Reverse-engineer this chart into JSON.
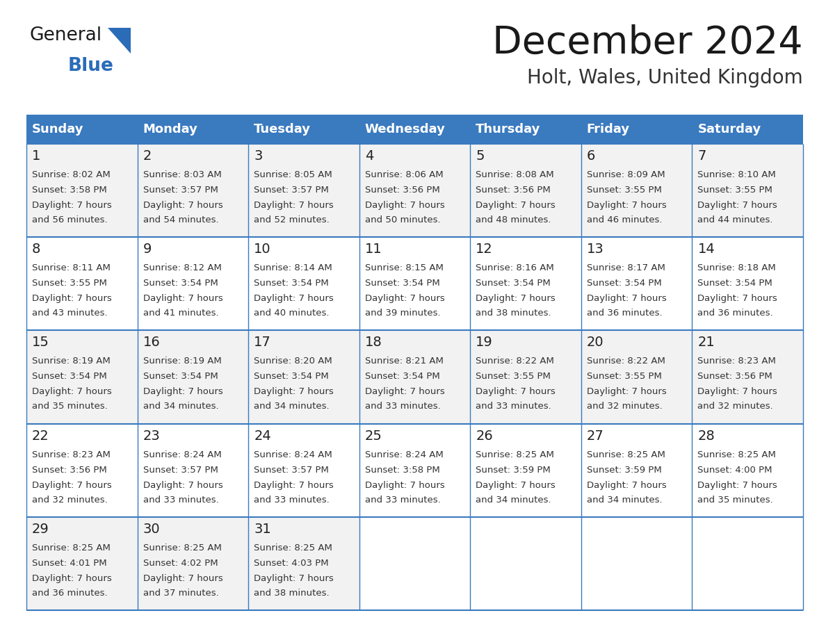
{
  "title": "December 2024",
  "subtitle": "Holt, Wales, United Kingdom",
  "days_of_week": [
    "Sunday",
    "Monday",
    "Tuesday",
    "Wednesday",
    "Thursday",
    "Friday",
    "Saturday"
  ],
  "header_bg": "#3a7abf",
  "header_text": "#ffffff",
  "row_bg_odd": "#f2f2f2",
  "row_bg_even": "#ffffff",
  "cell_text_color": "#333333",
  "day_num_color": "#222222",
  "grid_line_color": "#3a7abf",
  "title_color": "#1a1a1a",
  "subtitle_color": "#333333",
  "generalblue_text_color": "#1a1a1a",
  "blue_text_color": "#2b6cb8",
  "logo_general_color": "#1a1a1a",
  "weeks": [
    [
      {
        "day": 1,
        "sunrise": "8:02 AM",
        "sunset": "3:58 PM",
        "daylight": "7 hours and 56 minutes."
      },
      {
        "day": 2,
        "sunrise": "8:03 AM",
        "sunset": "3:57 PM",
        "daylight": "7 hours and 54 minutes."
      },
      {
        "day": 3,
        "sunrise": "8:05 AM",
        "sunset": "3:57 PM",
        "daylight": "7 hours and 52 minutes."
      },
      {
        "day": 4,
        "sunrise": "8:06 AM",
        "sunset": "3:56 PM",
        "daylight": "7 hours and 50 minutes."
      },
      {
        "day": 5,
        "sunrise": "8:08 AM",
        "sunset": "3:56 PM",
        "daylight": "7 hours and 48 minutes."
      },
      {
        "day": 6,
        "sunrise": "8:09 AM",
        "sunset": "3:55 PM",
        "daylight": "7 hours and 46 minutes."
      },
      {
        "day": 7,
        "sunrise": "8:10 AM",
        "sunset": "3:55 PM",
        "daylight": "7 hours and 44 minutes."
      }
    ],
    [
      {
        "day": 8,
        "sunrise": "8:11 AM",
        "sunset": "3:55 PM",
        "daylight": "7 hours and 43 minutes."
      },
      {
        "day": 9,
        "sunrise": "8:12 AM",
        "sunset": "3:54 PM",
        "daylight": "7 hours and 41 minutes."
      },
      {
        "day": 10,
        "sunrise": "8:14 AM",
        "sunset": "3:54 PM",
        "daylight": "7 hours and 40 minutes."
      },
      {
        "day": 11,
        "sunrise": "8:15 AM",
        "sunset": "3:54 PM",
        "daylight": "7 hours and 39 minutes."
      },
      {
        "day": 12,
        "sunrise": "8:16 AM",
        "sunset": "3:54 PM",
        "daylight": "7 hours and 38 minutes."
      },
      {
        "day": 13,
        "sunrise": "8:17 AM",
        "sunset": "3:54 PM",
        "daylight": "7 hours and 36 minutes."
      },
      {
        "day": 14,
        "sunrise": "8:18 AM",
        "sunset": "3:54 PM",
        "daylight": "7 hours and 36 minutes."
      }
    ],
    [
      {
        "day": 15,
        "sunrise": "8:19 AM",
        "sunset": "3:54 PM",
        "daylight": "7 hours and 35 minutes."
      },
      {
        "day": 16,
        "sunrise": "8:19 AM",
        "sunset": "3:54 PM",
        "daylight": "7 hours and 34 minutes."
      },
      {
        "day": 17,
        "sunrise": "8:20 AM",
        "sunset": "3:54 PM",
        "daylight": "7 hours and 34 minutes."
      },
      {
        "day": 18,
        "sunrise": "8:21 AM",
        "sunset": "3:54 PM",
        "daylight": "7 hours and 33 minutes."
      },
      {
        "day": 19,
        "sunrise": "8:22 AM",
        "sunset": "3:55 PM",
        "daylight": "7 hours and 33 minutes."
      },
      {
        "day": 20,
        "sunrise": "8:22 AM",
        "sunset": "3:55 PM",
        "daylight": "7 hours and 32 minutes."
      },
      {
        "day": 21,
        "sunrise": "8:23 AM",
        "sunset": "3:56 PM",
        "daylight": "7 hours and 32 minutes."
      }
    ],
    [
      {
        "day": 22,
        "sunrise": "8:23 AM",
        "sunset": "3:56 PM",
        "daylight": "7 hours and 32 minutes."
      },
      {
        "day": 23,
        "sunrise": "8:24 AM",
        "sunset": "3:57 PM",
        "daylight": "7 hours and 33 minutes."
      },
      {
        "day": 24,
        "sunrise": "8:24 AM",
        "sunset": "3:57 PM",
        "daylight": "7 hours and 33 minutes."
      },
      {
        "day": 25,
        "sunrise": "8:24 AM",
        "sunset": "3:58 PM",
        "daylight": "7 hours and 33 minutes."
      },
      {
        "day": 26,
        "sunrise": "8:25 AM",
        "sunset": "3:59 PM",
        "daylight": "7 hours and 34 minutes."
      },
      {
        "day": 27,
        "sunrise": "8:25 AM",
        "sunset": "3:59 PM",
        "daylight": "7 hours and 34 minutes."
      },
      {
        "day": 28,
        "sunrise": "8:25 AM",
        "sunset": "4:00 PM",
        "daylight": "7 hours and 35 minutes."
      }
    ],
    [
      {
        "day": 29,
        "sunrise": "8:25 AM",
        "sunset": "4:01 PM",
        "daylight": "7 hours and 36 minutes."
      },
      {
        "day": 30,
        "sunrise": "8:25 AM",
        "sunset": "4:02 PM",
        "daylight": "7 hours and 37 minutes."
      },
      {
        "day": 31,
        "sunrise": "8:25 AM",
        "sunset": "4:03 PM",
        "daylight": "7 hours and 38 minutes."
      },
      null,
      null,
      null,
      null
    ]
  ]
}
